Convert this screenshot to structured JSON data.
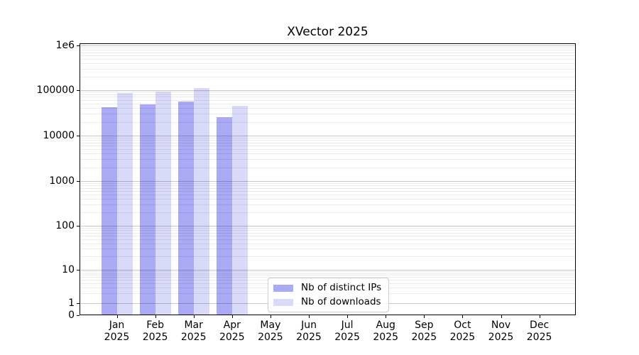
{
  "chart": {
    "title": "XVector 2025",
    "colors": {
      "distinct_ips": "#a9a9f4",
      "downloads": "#d9d9f9",
      "axis": "#000000",
      "grid_major": "#c6c6c6",
      "grid_minor": "#ececec",
      "legend_border": "#cccccc",
      "background": "#ffffff"
    }
  },
  "chart_data": {
    "type": "bar",
    "title": "XVector 2025",
    "categories": [
      "Jan 2025",
      "Feb 2025",
      "Mar 2025",
      "Apr 2025",
      "May 2025",
      "Jun 2025",
      "Jul 2025",
      "Aug 2025",
      "Sep 2025",
      "Oct 2025",
      "Nov 2025",
      "Dec 2025"
    ],
    "x": {
      "months": [
        "Jan",
        "Feb",
        "Mar",
        "Apr",
        "May",
        "Jun",
        "Jul",
        "Aug",
        "Sep",
        "Oct",
        "Nov",
        "Dec"
      ],
      "year": "2025"
    },
    "series": [
      {
        "name": "Nb of distinct IPs",
        "color": "#a9a9f4",
        "values": [
          42000,
          48000,
          56000,
          25000,
          null,
          null,
          null,
          null,
          null,
          null,
          null,
          null
        ]
      },
      {
        "name": "Nb of downloads",
        "color": "#d9d9f9",
        "values": [
          84000,
          92000,
          110000,
          44000,
          null,
          null,
          null,
          null,
          null,
          null,
          null,
          null
        ]
      }
    ],
    "y_axis": {
      "scale": "log (with 0 baseline)",
      "ticks": [
        {
          "label": "1e6",
          "value": 1000000
        },
        {
          "label": "100000",
          "value": 100000
        },
        {
          "label": "10000",
          "value": 10000
        },
        {
          "label": "1000",
          "value": 1000
        },
        {
          "label": "100",
          "value": 100
        },
        {
          "label": "10",
          "value": 10
        },
        {
          "label": "1",
          "value": 1
        },
        {
          "label": "0",
          "value": 0
        }
      ],
      "range": [
        0,
        1000000
      ]
    },
    "grid": true,
    "legend_position": "lower center",
    "legend": [
      "Nb of distinct IPs",
      "Nb of downloads"
    ]
  }
}
